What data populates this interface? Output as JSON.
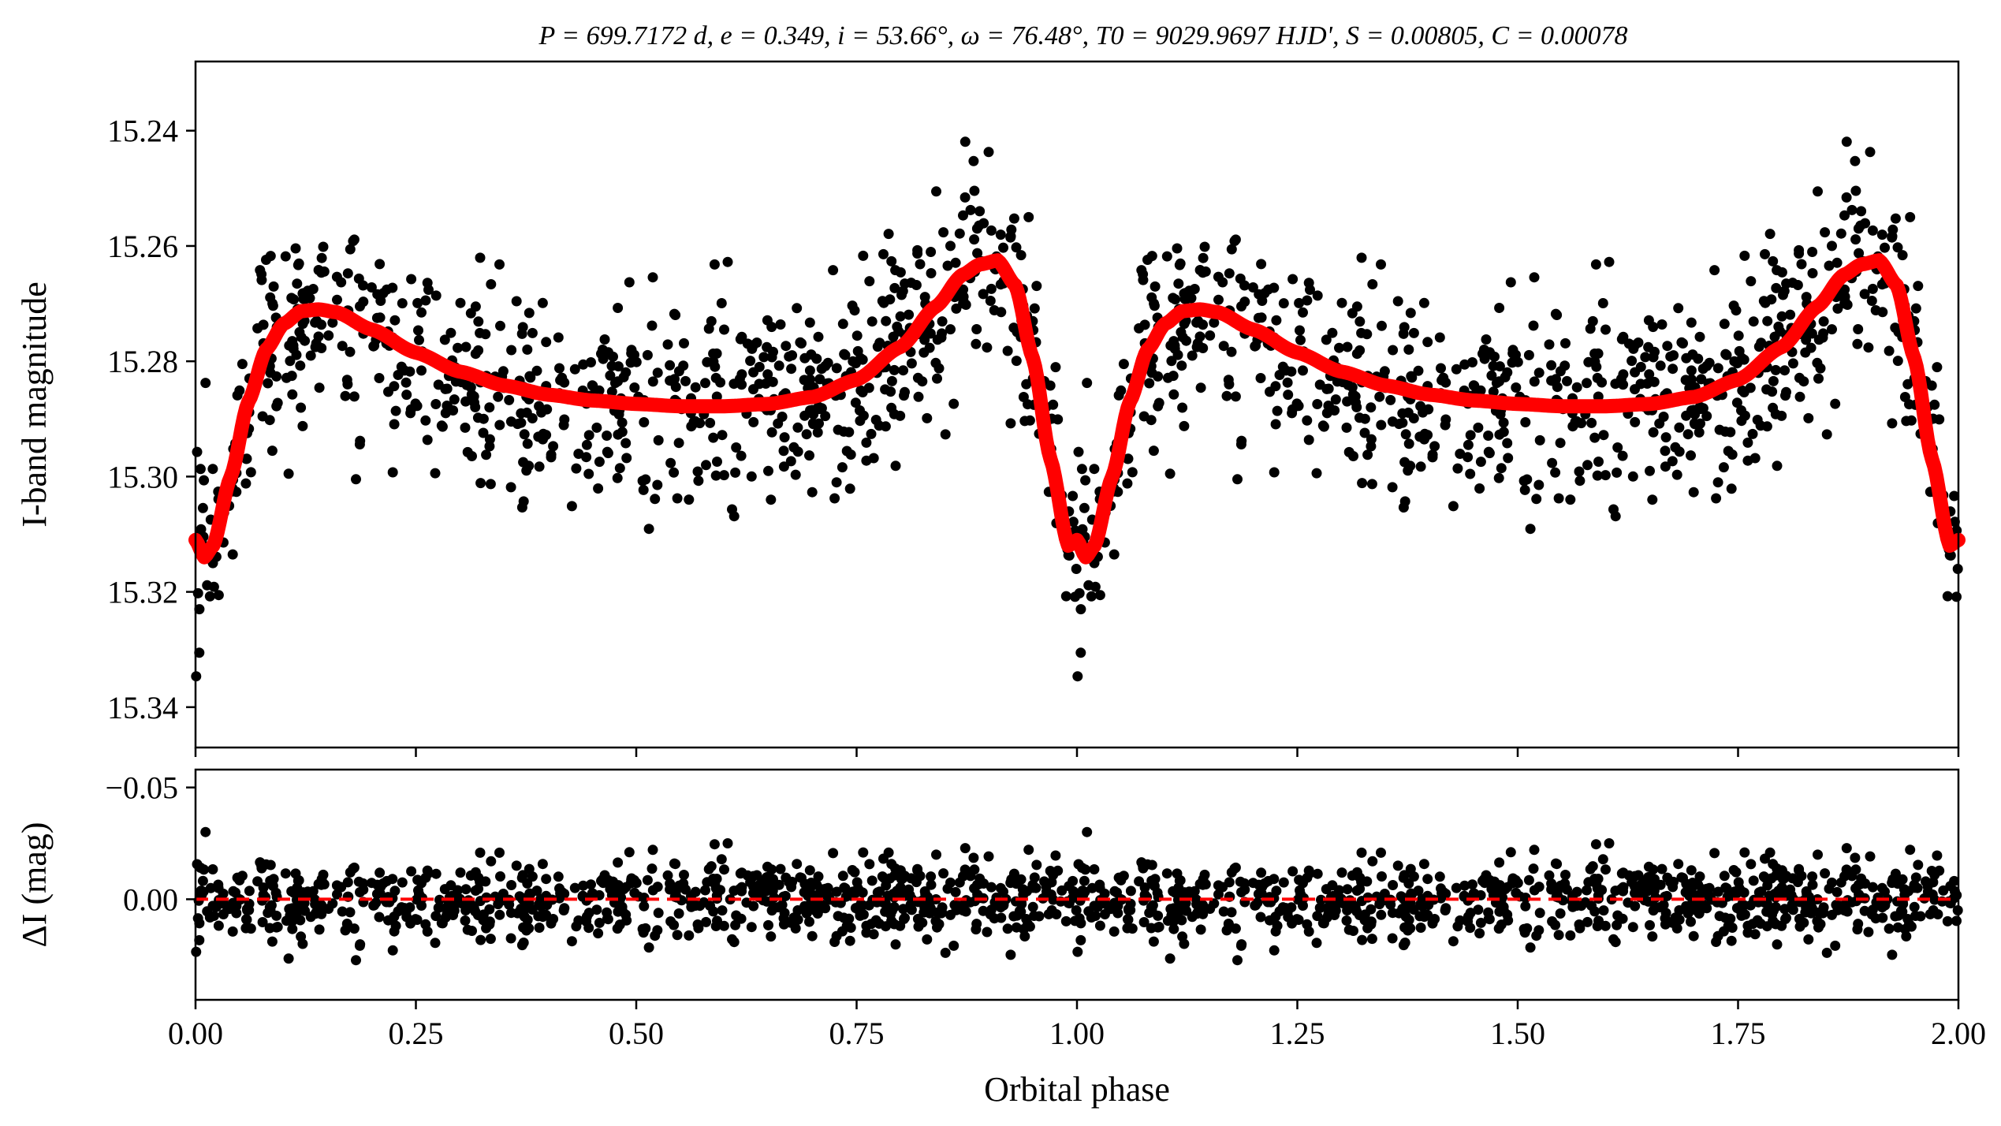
{
  "chart_data": [
    {
      "panel": "top",
      "type": "scatter",
      "title": "P = 699.7172 d, e = 0.349, i = 53.66°, ω = 76.48°, T0 = 9029.9697 HJD', S = 0.00805, C = 0.00078",
      "ylabel": "I-band magnitude",
      "xlabel": "",
      "xlim": [
        0.0,
        2.0
      ],
      "ylim": [
        15.347,
        15.228
      ],
      "y_inverted": true,
      "yticks": [
        15.24,
        15.26,
        15.28,
        15.3,
        15.32,
        15.34
      ],
      "ytick_labels": [
        "15.24",
        "15.26",
        "15.28",
        "15.30",
        "15.32",
        "15.34"
      ],
      "grid": false,
      "points_color": "#000000",
      "model_color": "#ff0000",
      "model_curve_phase": [
        0.0,
        0.01,
        0.02,
        0.04,
        0.06,
        0.08,
        0.1,
        0.12,
        0.14,
        0.16,
        0.2,
        0.25,
        0.3,
        0.35,
        0.4,
        0.45,
        0.5,
        0.55,
        0.6,
        0.65,
        0.7,
        0.75,
        0.8,
        0.84,
        0.87,
        0.89,
        0.91,
        0.93,
        0.95,
        0.97,
        0.99,
        1.0
      ],
      "model_curve_mag": [
        15.311,
        15.314,
        15.312,
        15.3,
        15.287,
        15.278,
        15.2735,
        15.2713,
        15.271,
        15.2715,
        15.2745,
        15.2785,
        15.2818,
        15.2842,
        15.2858,
        15.2868,
        15.2874,
        15.2878,
        15.2878,
        15.2874,
        15.2862,
        15.2832,
        15.2775,
        15.2705,
        15.265,
        15.2632,
        15.2625,
        15.2668,
        15.2795,
        15.297,
        15.312,
        15.311
      ]
    },
    {
      "panel": "bottom",
      "type": "scatter",
      "ylabel": "ΔI (mag)",
      "xlabel": "Orbital phase",
      "xlim": [
        0.0,
        2.0
      ],
      "ylim": [
        0.045,
        -0.058
      ],
      "y_inverted": true,
      "yticks": [
        -0.05,
        0.0
      ],
      "ytick_labels": [
        "−0.05",
        "0.00"
      ],
      "xticks": [
        0.0,
        0.25,
        0.5,
        0.75,
        1.0,
        1.25,
        1.5,
        1.75,
        2.0
      ],
      "xtick_labels": [
        "0.00",
        "0.25",
        "0.50",
        "0.75",
        "1.00",
        "1.25",
        "1.50",
        "1.75",
        "2.00"
      ],
      "grid": false,
      "zero_line": 0.0,
      "zero_line_color": "#ff0000",
      "residual_spread": 0.012,
      "points_color": "#000000"
    }
  ]
}
